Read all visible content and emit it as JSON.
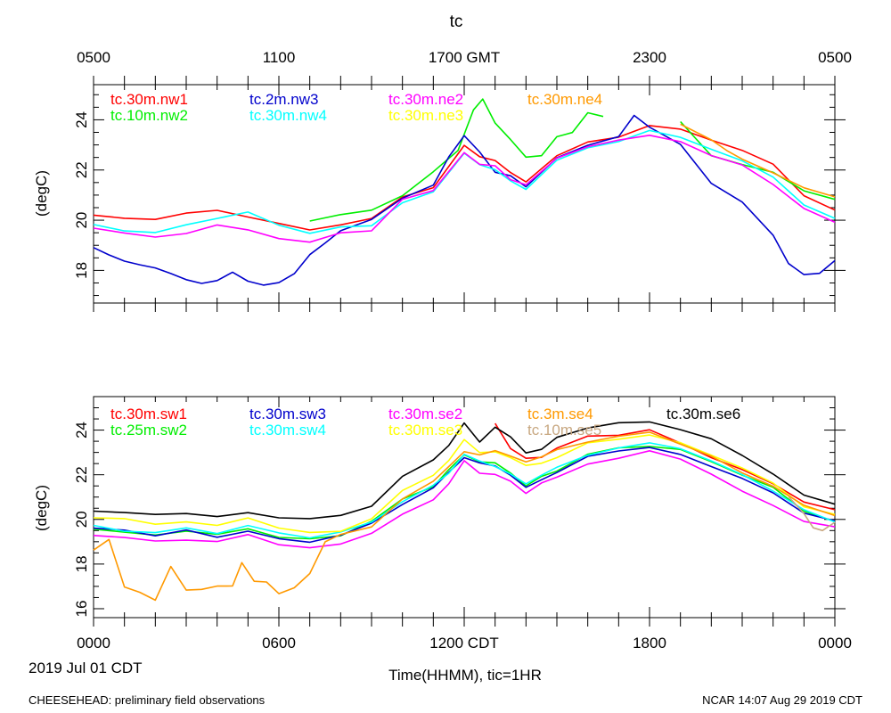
{
  "chart_data": [
    {
      "type": "line",
      "title": "tc",
      "ylabel": "(degC)",
      "ylim": [
        16.7,
        25.4
      ],
      "yticks": [
        18,
        20,
        22,
        24
      ],
      "x_unit": "hours since 0000 CDT",
      "x_range": [
        0,
        24
      ],
      "top_ticks": [
        "0500",
        "1100",
        "1700 GMT",
        "2300",
        "0500"
      ],
      "series": [
        {
          "name": "tc.30m.nw1",
          "color": "#ff0000",
          "x": [
            0,
            1,
            2,
            3,
            4,
            5,
            6,
            7,
            8,
            9,
            10,
            11,
            12,
            12.5,
            13,
            13.5,
            14,
            15,
            16,
            17,
            18,
            19,
            20,
            21,
            22,
            23,
            24
          ],
          "y": [
            20.2,
            20.1,
            20.0,
            20.3,
            20.4,
            20.1,
            19.9,
            19.6,
            19.8,
            20.1,
            20.9,
            21.3,
            23.0,
            22.5,
            22.4,
            21.9,
            21.5,
            22.6,
            23.1,
            23.3,
            23.8,
            23.6,
            23.2,
            22.8,
            22.2,
            21.0,
            20.4
          ]
        },
        {
          "name": "tc.10m.nw2",
          "color": "#00ee00",
          "x": [
            7,
            8,
            9,
            10,
            11,
            11.8,
            12.3,
            12.6,
            13,
            13.5,
            14,
            14.5,
            15,
            15.5,
            16,
            16.5,
            17,
            18,
            19,
            20,
            21,
            22,
            23,
            24
          ],
          "y": [
            20.0,
            20.2,
            20.4,
            21.0,
            21.9,
            22.8,
            24.4,
            24.8,
            23.9,
            23.2,
            22.5,
            22.6,
            23.3,
            23.5,
            24.3,
            24.1,
            null,
            null,
            23.9,
            22.6,
            22.2,
            21.9,
            21.2,
            20.8
          ]
        },
        {
          "name": "tc.2m.nw3",
          "color": "#0000cc",
          "x": [
            0,
            0.5,
            1,
            1.5,
            2,
            2.5,
            3,
            3.5,
            4,
            4.5,
            5,
            5.5,
            6,
            6.5,
            7,
            7.5,
            8,
            9,
            10,
            11,
            11.5,
            12,
            12.5,
            13,
            13.5,
            14,
            15,
            16,
            17,
            17.5,
            18,
            19,
            20,
            21,
            22,
            22.5,
            23,
            23.5,
            24
          ],
          "y": [
            18.9,
            18.6,
            18.4,
            18.2,
            18.1,
            17.9,
            17.6,
            17.5,
            17.6,
            17.9,
            17.6,
            17.4,
            17.5,
            17.9,
            18.6,
            19.1,
            19.6,
            20.0,
            20.9,
            21.4,
            22.5,
            23.4,
            22.7,
            21.9,
            21.8,
            21.3,
            22.5,
            23.0,
            23.3,
            24.2,
            23.7,
            23.0,
            21.5,
            20.7,
            19.4,
            18.3,
            17.8,
            17.9,
            18.4
          ]
        },
        {
          "name": "tc.30m.nw4",
          "color": "#00ffff",
          "x": [
            0,
            1,
            2,
            3,
            4,
            5,
            6,
            7,
            8,
            9,
            10,
            11,
            12,
            12.5,
            13,
            13.5,
            14,
            15,
            16,
            17,
            18,
            19,
            20,
            21,
            22,
            23,
            24
          ],
          "y": [
            19.8,
            19.6,
            19.5,
            19.8,
            20.1,
            20.3,
            19.8,
            19.5,
            19.7,
            19.8,
            20.7,
            21.1,
            22.7,
            22.2,
            22.0,
            21.6,
            21.2,
            22.4,
            22.9,
            23.1,
            23.6,
            23.3,
            22.8,
            22.4,
            21.7,
            20.6,
            20.1
          ]
        },
        {
          "name": "tc.30m.ne2",
          "color": "#ff00ff",
          "x": [
            0,
            1,
            2,
            3,
            4,
            5,
            6,
            7,
            8,
            9,
            10,
            11,
            12,
            12.5,
            13,
            13.5,
            14,
            15,
            16,
            17,
            18,
            19,
            20,
            21,
            22,
            23,
            24
          ],
          "y": [
            19.7,
            19.5,
            19.3,
            19.5,
            19.8,
            19.6,
            19.3,
            19.1,
            19.5,
            19.6,
            20.8,
            21.2,
            22.7,
            22.2,
            22.2,
            21.6,
            21.4,
            22.5,
            22.9,
            23.2,
            23.4,
            23.1,
            22.6,
            22.2,
            21.4,
            20.5,
            19.9
          ]
        },
        {
          "name": "tc.30m.ne3",
          "color": "#ffff00",
          "x": [],
          "y": []
        },
        {
          "name": "tc.30m.ne4",
          "color": "#ff9900",
          "x": [
            19,
            20,
            20.5,
            21,
            22,
            23,
            24
          ],
          "y": [
            23.8,
            23.2,
            22.8,
            22.4,
            21.9,
            21.3,
            20.9
          ]
        }
      ]
    },
    {
      "type": "line",
      "ylabel": "(degC)",
      "ylim": [
        15.6,
        25.5
      ],
      "yticks": [
        16,
        18,
        20,
        22,
        24
      ],
      "x_unit": "hours since 0000 CDT",
      "x_range": [
        0,
        24
      ],
      "xlabel": "Time(HHMM), tic=1HR",
      "bottom_ticks": [
        "0000",
        "0600",
        "1200 CDT",
        "1800",
        "0000"
      ],
      "date_label": "2019 Jul 01 CDT",
      "series": [
        {
          "name": "tc.30m.sw1",
          "color": "#ff0000",
          "x": [
            13,
            13.5,
            14,
            14.5,
            15,
            16,
            17,
            18,
            19,
            20,
            21,
            22,
            23,
            24
          ],
          "y": [
            24.3,
            23.2,
            22.7,
            22.8,
            23.2,
            23.7,
            23.8,
            24.0,
            23.4,
            22.8,
            22.2,
            21.6,
            20.8,
            20.4
          ]
        },
        {
          "name": "tc.25m.sw2",
          "color": "#00ee00",
          "x": [
            0,
            1,
            2,
            3,
            4,
            5,
            6,
            7,
            8,
            9,
            10,
            11,
            11.5,
            12,
            12.5,
            13,
            13.5,
            14,
            14.5,
            15,
            16,
            17,
            18,
            19,
            20,
            21,
            22,
            23,
            24
          ],
          "y": [
            19.6,
            19.4,
            19.3,
            19.5,
            19.3,
            19.6,
            19.2,
            19.1,
            19.3,
            19.9,
            20.9,
            21.5,
            22.2,
            22.9,
            22.6,
            22.5,
            22.1,
            21.5,
            21.9,
            22.2,
            22.9,
            23.2,
            23.3,
            23.1,
            22.6,
            22.0,
            21.4,
            20.4,
            19.9
          ]
        },
        {
          "name": "tc.30m.sw3",
          "color": "#0000cc",
          "x": [
            0,
            1,
            2,
            3,
            4,
            5,
            6,
            7,
            8,
            9,
            10,
            11,
            11.5,
            12,
            12.5,
            13,
            13.5,
            14,
            14.5,
            15,
            16,
            17,
            18,
            19,
            20,
            21,
            22,
            23,
            24
          ],
          "y": [
            19.6,
            19.5,
            19.3,
            19.5,
            19.2,
            19.5,
            19.1,
            19.0,
            19.3,
            19.8,
            20.7,
            21.4,
            22.1,
            22.8,
            22.5,
            22.4,
            22.0,
            21.4,
            21.8,
            22.1,
            22.8,
            23.1,
            23.2,
            22.9,
            22.4,
            21.8,
            21.2,
            20.3,
            19.9
          ]
        },
        {
          "name": "tc.30m.sw4",
          "color": "#00ffff",
          "x": [
            0,
            1,
            2,
            3,
            4,
            5,
            6,
            7,
            8,
            9,
            10,
            11,
            11.5,
            12,
            12.5,
            13,
            13.5,
            14,
            14.5,
            15,
            16,
            17,
            18,
            19,
            20,
            21,
            22,
            23,
            24
          ],
          "y": [
            19.7,
            19.5,
            19.4,
            19.6,
            19.4,
            19.7,
            19.4,
            19.2,
            19.4,
            19.9,
            20.8,
            21.5,
            22.1,
            22.9,
            22.6,
            22.4,
            22.0,
            21.6,
            22.0,
            22.3,
            22.9,
            23.2,
            23.4,
            23.2,
            22.6,
            22.0,
            21.3,
            20.4,
            19.9
          ]
        },
        {
          "name": "tc.30m.se2",
          "color": "#ff00ff",
          "x": [
            0,
            1,
            2,
            3,
            4,
            5,
            6,
            7,
            8,
            9,
            10,
            11,
            11.5,
            12,
            12.5,
            13,
            13.5,
            14,
            14.5,
            15,
            16,
            17,
            18,
            19,
            20,
            21,
            22,
            23,
            24
          ],
          "y": [
            19.3,
            19.2,
            19.0,
            19.1,
            19.0,
            19.3,
            18.9,
            18.7,
            18.9,
            19.4,
            20.2,
            20.9,
            21.6,
            22.6,
            22.1,
            22.0,
            21.7,
            21.2,
            21.6,
            21.9,
            22.5,
            22.7,
            23.1,
            22.7,
            22.0,
            21.3,
            20.6,
            19.9,
            19.7
          ]
        },
        {
          "name": "tc.30m.se3",
          "color": "#ffff00",
          "x": [
            0,
            1,
            2,
            3,
            4,
            5,
            6,
            7,
            8,
            9,
            10,
            11,
            11.5,
            12,
            12.5,
            13,
            13.5,
            14,
            14.5,
            15,
            16,
            17,
            18,
            19,
            20,
            21,
            22,
            23,
            24
          ],
          "y": [
            20.1,
            20.0,
            19.8,
            19.9,
            19.7,
            20.1,
            19.6,
            19.4,
            19.5,
            20.0,
            21.3,
            22.0,
            22.6,
            23.6,
            23.0,
            23.0,
            22.8,
            22.4,
            22.5,
            22.8,
            23.4,
            23.6,
            23.8,
            23.4,
            22.9,
            22.3,
            21.6,
            20.6,
            20.2
          ]
        },
        {
          "name": "tc.3m.se4",
          "color": "#ff9900",
          "x": [
            0,
            0.5,
            1,
            1.5,
            2,
            2.5,
            3,
            3.5,
            4,
            4.5,
            4.8,
            5.2,
            5.6,
            6,
            6.5,
            7,
            7.5,
            8,
            9,
            10,
            11,
            11.5,
            12,
            12.5,
            13,
            13.5,
            14,
            14.5,
            15,
            16,
            17,
            18,
            19,
            20,
            21,
            22,
            23,
            24
          ],
          "y": [
            18.6,
            19.1,
            17.0,
            16.7,
            16.4,
            17.9,
            16.8,
            16.9,
            17.0,
            17.0,
            18.1,
            17.2,
            17.2,
            16.7,
            16.9,
            17.6,
            19.0,
            19.3,
            19.7,
            20.9,
            21.7,
            22.4,
            23.0,
            22.9,
            23.1,
            22.8,
            22.6,
            22.8,
            23.1,
            23.5,
            23.7,
            23.9,
            23.4,
            22.8,
            22.1,
            21.5,
            20.6,
            20.2
          ]
        },
        {
          "name": "tc.10m.se5",
          "color": "#c8a882",
          "x": [
            22.5,
            23,
            23.3,
            23.6,
            24
          ],
          "y": [
            21.0,
            20.3,
            19.6,
            19.5,
            19.9
          ]
        },
        {
          "name": "tc.30m.se6",
          "color": "#000000",
          "x": [
            0,
            1,
            2,
            3,
            4,
            5,
            6,
            7,
            8,
            9,
            10,
            11,
            11.5,
            12,
            12.5,
            13,
            13.5,
            14,
            14.5,
            15,
            16,
            17,
            18,
            19,
            20,
            21,
            22,
            23,
            24
          ],
          "y": [
            20.4,
            20.3,
            20.2,
            20.3,
            20.1,
            20.3,
            20.1,
            20.0,
            20.2,
            20.6,
            21.9,
            22.7,
            23.3,
            24.3,
            23.5,
            24.1,
            23.7,
            23.0,
            23.1,
            23.7,
            24.1,
            24.3,
            24.4,
            24.0,
            23.6,
            22.9,
            22.0,
            21.1,
            20.7
          ]
        }
      ]
    }
  ],
  "footer": {
    "left": "CHEESEHEAD: preliminary field observations",
    "right": "NCAR 14:07 Aug 29 2019 CDT"
  }
}
